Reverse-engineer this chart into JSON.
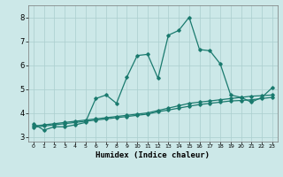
{
  "xlabel": "Humidex (Indice chaleur)",
  "bg_color": "#cce8e8",
  "line_color": "#1a7a6e",
  "grid_color": "#aacece",
  "xlim": [
    -0.5,
    23.5
  ],
  "ylim": [
    2.8,
    8.5
  ],
  "xticks": [
    0,
    1,
    2,
    3,
    4,
    5,
    6,
    7,
    8,
    9,
    10,
    11,
    12,
    13,
    14,
    15,
    16,
    17,
    18,
    19,
    20,
    21,
    22,
    23
  ],
  "yticks": [
    3,
    4,
    5,
    6,
    7,
    8
  ],
  "main_y": [
    3.55,
    3.28,
    3.42,
    3.42,
    3.5,
    3.6,
    4.6,
    4.75,
    4.4,
    5.5,
    6.4,
    6.45,
    5.45,
    7.25,
    7.45,
    8.0,
    6.65,
    6.6,
    6.05,
    4.75,
    4.65,
    4.45,
    4.65,
    5.05
  ],
  "line1_y": [
    3.45,
    3.5,
    3.55,
    3.6,
    3.65,
    3.7,
    3.75,
    3.8,
    3.85,
    3.9,
    3.95,
    4.0,
    4.1,
    4.2,
    4.3,
    4.4,
    4.45,
    4.5,
    4.55,
    4.6,
    4.65,
    4.7,
    4.72,
    4.75
  ],
  "line2_y": [
    3.4,
    3.45,
    3.5,
    3.55,
    3.6,
    3.65,
    3.7,
    3.75,
    3.8,
    3.85,
    3.9,
    3.95,
    4.05,
    4.12,
    4.2,
    4.28,
    4.35,
    4.4,
    4.45,
    4.5,
    4.52,
    4.55,
    4.6,
    4.65
  ]
}
